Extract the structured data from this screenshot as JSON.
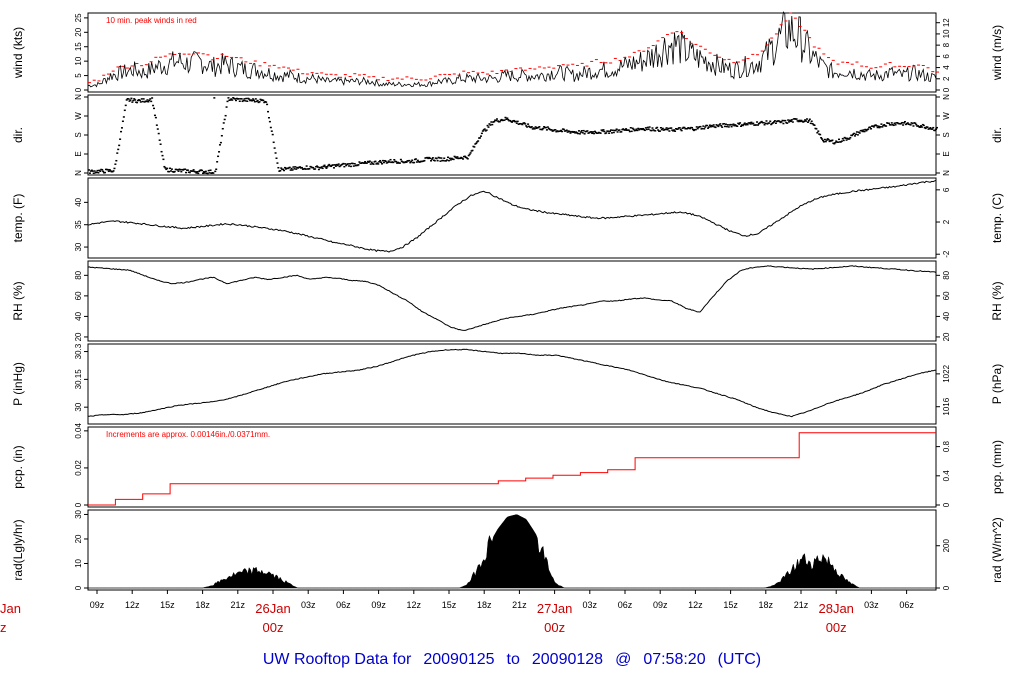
{
  "footer": {
    "title_parts": [
      "UW Rooftop Data for",
      "20090125",
      "to",
      "20090128",
      "@",
      "07:58:20",
      "(UTC)"
    ]
  },
  "colors": {
    "trace": "#000000",
    "peak": "#ff0000",
    "precip": "#ff0000",
    "date_label": "#cc0000",
    "title": "#0000cc"
  },
  "chart_data": [
    {
      "id": "wind",
      "type": "line",
      "ylabel": "wind (kts)",
      "ylabel_right": "wind (m/s)",
      "yticks": [
        0,
        5,
        10,
        15,
        20,
        25
      ],
      "ylim": [
        0,
        26
      ],
      "yticks_right": [
        0,
        2,
        4,
        6,
        8,
        10,
        12
      ],
      "right_factor": 1.944,
      "annotation": "10 min. peak winds in red",
      "series": [
        {
          "values": [
            1.5,
            2,
            5,
            6,
            7,
            6,
            8,
            9,
            10,
            9,
            10,
            8,
            9,
            8,
            7,
            7,
            6,
            5,
            5,
            4,
            4,
            3,
            3,
            3,
            3,
            3,
            2,
            2,
            2,
            2,
            2,
            3,
            3,
            4,
            4,
            4,
            4,
            5,
            5,
            5,
            5,
            6,
            6,
            5,
            6,
            7,
            7,
            8,
            9,
            10,
            12,
            15,
            16,
            13,
            11,
            10,
            8,
            7,
            8,
            9,
            12,
            17,
            21,
            18,
            12,
            8,
            6,
            7,
            6,
            5,
            5,
            6,
            5,
            6,
            5,
            4
          ],
          "peak_values": [
            2.5,
            4,
            7,
            8,
            9,
            9,
            11,
            12,
            13,
            13,
            13,
            11,
            12,
            11,
            10,
            9,
            9,
            8,
            7,
            6,
            6,
            5,
            5,
            5,
            5,
            4,
            4,
            4,
            4,
            4,
            4,
            5,
            5,
            6,
            6,
            6,
            6,
            7,
            7,
            7,
            8,
            8,
            9,
            8,
            9,
            10,
            10,
            11,
            12,
            14,
            16,
            19,
            21,
            17,
            15,
            13,
            11,
            10,
            11,
            12,
            16,
            21,
            26,
            22,
            16,
            12,
            9,
            10,
            9,
            8,
            8,
            9,
            8,
            9,
            8,
            6
          ]
        }
      ]
    },
    {
      "id": "dir",
      "type": "scatter",
      "ylabel": "dir.",
      "ylabel_right": "dir.",
      "yticks": [
        "N",
        "E",
        "S",
        "W",
        "N"
      ],
      "yticks_right": [
        "N",
        "E",
        "S",
        "W",
        "N"
      ],
      "ylim": [
        0,
        360
      ],
      "series": [
        {
          "values": [
            10,
            12,
            15,
            350,
            345,
            352,
            20,
            15,
            12,
            10,
            8,
            355,
            350,
            348,
            345,
            20,
            22,
            30,
            28,
            35,
            40,
            45,
            50,
            55,
            60,
            58,
            62,
            70,
            68,
            75,
            80,
            190,
            250,
            260,
            240,
            220,
            215,
            205,
            200,
            195,
            198,
            200,
            205,
            210,
            215,
            210,
            208,
            212,
            215,
            225,
            228,
            232,
            235,
            240,
            242,
            245,
            255,
            250,
            160,
            150,
            170,
            200,
            220,
            235,
            240,
            235,
            225,
            210
          ]
        }
      ]
    },
    {
      "id": "temp",
      "type": "line",
      "ylabel": "temp. (F)",
      "ylabel_right": "temp. (C)",
      "yticks": [
        30,
        35,
        40
      ],
      "ylim": [
        28,
        45
      ],
      "yticks_right": [
        -2,
        2,
        6
      ],
      "series": [
        {
          "values": [
            35,
            35.5,
            35.8,
            35.5,
            35.2,
            34.8,
            34.5,
            34.2,
            34.5,
            34.8,
            35.2,
            35,
            34.6,
            34.2,
            33.8,
            33.2,
            32.5,
            31.8,
            31,
            30.5,
            29.8,
            29.2,
            29,
            30,
            32,
            34.5,
            37,
            39.5,
            41.5,
            42.5,
            41,
            39.5,
            38.5,
            38,
            37.5,
            37.2,
            36.8,
            36.5,
            36.5,
            36.8,
            37,
            37.2,
            37.5,
            37.8,
            37.5,
            36.5,
            35,
            33.5,
            32.5,
            33,
            35,
            37,
            39,
            40.5,
            41.5,
            42,
            42.5,
            42.8,
            43.2,
            43.5,
            44,
            44.5,
            44.8
          ]
        }
      ]
    },
    {
      "id": "rh",
      "type": "line",
      "ylabel": "RH (%)",
      "ylabel_right": "RH (%)",
      "yticks": [
        20,
        40,
        60,
        80
      ],
      "ylim": [
        18,
        92
      ],
      "yticks_right": [
        20,
        40,
        60,
        80
      ],
      "series": [
        {
          "values": [
            88,
            87,
            86,
            85,
            80,
            75,
            72,
            73,
            76,
            78,
            72,
            75,
            78,
            76,
            78,
            80,
            76,
            78,
            77,
            75,
            74,
            70,
            62,
            55,
            45,
            38,
            30,
            26,
            30,
            34,
            38,
            40,
            42,
            45,
            48,
            50,
            52,
            55,
            55,
            57,
            58,
            56,
            55,
            48,
            44,
            60,
            75,
            85,
            88,
            89,
            88,
            87,
            86,
            87,
            88,
            89,
            88,
            87,
            86,
            85,
            84,
            83
          ]
        }
      ]
    },
    {
      "id": "pres",
      "type": "line",
      "ylabel": "P (inHg)",
      "ylabel_right": "P (hPa)",
      "yticks": [
        30.0,
        30.15,
        30.3
      ],
      "ylim": [
        29.92,
        30.33
      ],
      "yticks_right": [
        1016,
        1022
      ],
      "series": [
        {
          "values": [
            29.95,
            29.96,
            29.96,
            29.97,
            29.99,
            30.01,
            30.02,
            30.03,
            30.05,
            30.08,
            30.11,
            30.14,
            30.16,
            30.18,
            30.19,
            30.2,
            30.22,
            30.25,
            30.28,
            30.3,
            30.31,
            30.31,
            30.3,
            30.29,
            30.29,
            30.28,
            30.28,
            30.26,
            30.24,
            30.22,
            30.2,
            30.17,
            30.14,
            30.12,
            30.1,
            30.07,
            30.04,
            30.0,
            29.97,
            29.95,
            29.98,
            30.02,
            30.05,
            30.08,
            30.12,
            30.15,
            30.18,
            30.2
          ]
        }
      ]
    },
    {
      "id": "pcp",
      "type": "line",
      "ylabel": "pcp. (in)",
      "ylabel_right": "pcp. (mm)",
      "yticks": [
        0.0,
        0.02,
        0.04
      ],
      "ylim": [
        0,
        0.041
      ],
      "yticks_right": [
        0,
        0.4,
        0.8
      ],
      "annotation": "Increments are approx. 0.00146in./0.0371mm.",
      "series": [
        {
          "values": [
            0,
            0.003,
            0.006,
            0.0115,
            0.0115,
            0.0115,
            0.0115,
            0.0115,
            0.0115,
            0.0115,
            0.0115,
            0.0115,
            0.0115,
            0.0115,
            0.0115,
            0.013,
            0.0145,
            0.016,
            0.0175,
            0.019,
            0.0255,
            0.0255,
            0.0255,
            0.0255,
            0.0255,
            0.0255,
            0.039,
            0.039,
            0.039,
            0.039,
            0.039,
            0.039
          ]
        }
      ]
    },
    {
      "id": "rad",
      "type": "area",
      "ylabel": "rad(Lgly/hr)",
      "ylabel_right": "rad (W/m^2)",
      "yticks": [
        0,
        10,
        20,
        30
      ],
      "ylim": [
        0,
        31
      ],
      "yticks_right": [
        0,
        200
      ],
      "series": [
        {
          "values": [
            0,
            0,
            0,
            0,
            0,
            0,
            0,
            0,
            0,
            0,
            0,
            0,
            0,
            1,
            3,
            5,
            6,
            7,
            7,
            6,
            4,
            2,
            0,
            0,
            0,
            0,
            0,
            0,
            0,
            0,
            0,
            0,
            0,
            0,
            0,
            0,
            0,
            0,
            0,
            0,
            2,
            9,
            17,
            24,
            29,
            30,
            28,
            22,
            12,
            2,
            0,
            0,
            0,
            0,
            0,
            0,
            0,
            0,
            0,
            0,
            0,
            0,
            0,
            0,
            0,
            0,
            0,
            0,
            0,
            0,
            0,
            0,
            1,
            4,
            8,
            12,
            10,
            13,
            10,
            5,
            2,
            0,
            0,
            0,
            0,
            0,
            0,
            0,
            0,
            0
          ]
        }
      ]
    }
  ],
  "time_axis": {
    "ticks": [
      "09z",
      "12z",
      "15z",
      "18z",
      "21z",
      "26Jan",
      "03z",
      "06z",
      "09z",
      "12z",
      "15z",
      "18z",
      "21z",
      "27Jan",
      "03z",
      "06z",
      "09z",
      "12z",
      "15z",
      "18z",
      "21z",
      "28Jan",
      "03z",
      "06z"
    ],
    "date_sublabel": "00z",
    "edge_label_top": "Jan",
    "edge_label_bottom": "z"
  }
}
